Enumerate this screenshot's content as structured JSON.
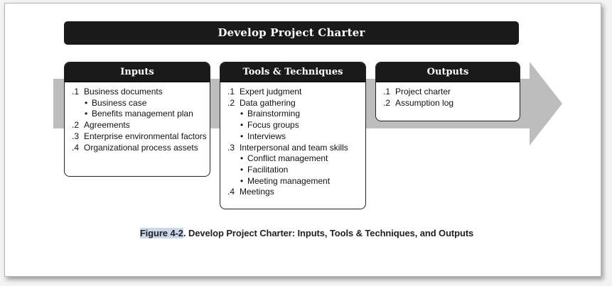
{
  "title": "Develop Project Charter",
  "inputs": {
    "heading": "Inputs",
    "items": [
      {
        "num": ".1",
        "text": "Business documents",
        "subs": [
          "Business case",
          "Benefits management plan"
        ]
      },
      {
        "num": ".2",
        "text": "Agreements",
        "subs": []
      },
      {
        "num": ".3",
        "text": "Enterprise environmental factors",
        "subs": []
      },
      {
        "num": ".4",
        "text": "Organizational process assets",
        "subs": []
      }
    ]
  },
  "tools": {
    "heading": "Tools & Techniques",
    "items": [
      {
        "num": ".1",
        "text": "Expert judgment",
        "subs": []
      },
      {
        "num": ".2",
        "text": "Data gathering",
        "subs": [
          "Brainstorming",
          "Focus groups",
          "Interviews"
        ]
      },
      {
        "num": ".3",
        "text": "Interpersonal and team skills",
        "subs": [
          "Conflict management",
          "Facilitation",
          "Meeting management"
        ]
      },
      {
        "num": ".4",
        "text": "Meetings",
        "subs": []
      }
    ]
  },
  "outputs": {
    "heading": "Outputs",
    "items": [
      {
        "num": ".1",
        "text": "Project charter",
        "subs": []
      },
      {
        "num": ".2",
        "text": "Assumption log",
        "subs": []
      }
    ]
  },
  "caption": {
    "highlight": "Figure 4-2",
    "rest": ". Develop Project Charter: Inputs, Tools & Techniques, and Outputs"
  },
  "colors": {
    "banner": "#1a1a1a",
    "arrow": "#bdbdbd",
    "highlight": "#c9d8ea"
  }
}
